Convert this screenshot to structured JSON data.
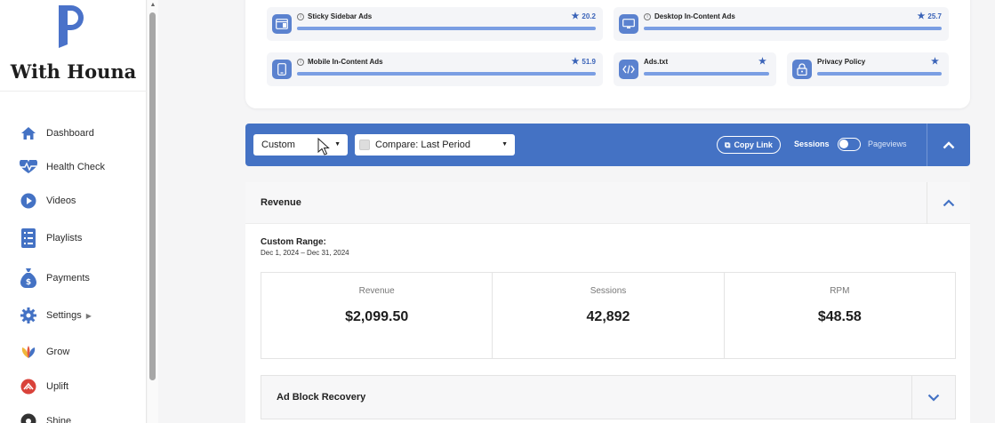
{
  "sidebar": {
    "brand": "With Houna",
    "items": [
      {
        "label": "Dashboard",
        "icon": "home-icon"
      },
      {
        "label": "Health Check",
        "icon": "heartbeat-icon"
      },
      {
        "label": "Videos",
        "icon": "play-icon"
      },
      {
        "label": "Playlists",
        "icon": "playlist-icon"
      },
      {
        "label": "Payments",
        "icon": "money-bag-icon"
      },
      {
        "label": "Settings",
        "icon": "gear-icon"
      },
      {
        "label": "Grow",
        "icon": "grow-icon"
      },
      {
        "label": "Uplift",
        "icon": "uplift-icon"
      },
      {
        "label": "Shine",
        "icon": "shine-icon"
      }
    ]
  },
  "ads": [
    {
      "name": "Sticky Sidebar Ads",
      "score": "20.2",
      "icon": "sidebar-layout-icon",
      "progress_pct": 100
    },
    {
      "name": "Desktop In-Content Ads",
      "score": "25.7",
      "icon": "monitor-icon",
      "progress_pct": 100
    },
    {
      "name": "Mobile In-Content Ads",
      "score": "51.9",
      "icon": "mobile-icon",
      "progress_pct": 100
    },
    {
      "name": "Ads.txt",
      "score": "",
      "icon": "code-icon",
      "progress_pct": 100
    },
    {
      "name": "Privacy Policy",
      "score": "",
      "icon": "lock-icon",
      "progress_pct": 100
    }
  ],
  "filters": {
    "date_range": "Custom",
    "compare": "Compare: Last Period",
    "copy_link": "Copy Link",
    "sessions": "Sessions",
    "pageviews": "Pageviews"
  },
  "revenue": {
    "title": "Revenue",
    "range_label": "Custom Range:",
    "range_value": "Dec 1, 2024 – Dec 31, 2024",
    "metrics": [
      {
        "label": "Revenue",
        "value": "$2,099.50"
      },
      {
        "label": "Sessions",
        "value": "42,892"
      },
      {
        "label": "RPM",
        "value": "$48.58"
      }
    ]
  },
  "ad_block": {
    "title": "Ad Block Recovery"
  },
  "colors": {
    "accent": "#4472c4",
    "icon_bg": "#5b82cf",
    "bar": "#7a9ee3"
  }
}
